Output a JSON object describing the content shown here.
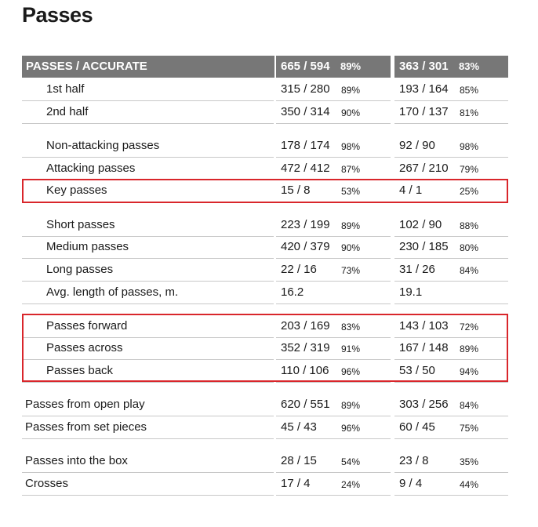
{
  "title": "Passes",
  "header": {
    "label": "PASSES / ACCURATE",
    "team_a": {
      "value": "665 / 594",
      "pct": "89%"
    },
    "team_b": {
      "value": "363 / 301",
      "pct": "83%"
    }
  },
  "rows": [
    {
      "label": "1st half",
      "a": "315 / 280",
      "ap": "89%",
      "b": "193 / 164",
      "bp": "85%"
    },
    {
      "label": "2nd half",
      "a": "350 / 314",
      "ap": "90%",
      "b": "170 / 137",
      "bp": "81%"
    },
    {
      "label": "Non-attacking passes",
      "a": "178 / 174",
      "ap": "98%",
      "b": "92 / 90",
      "bp": "98%"
    },
    {
      "label": "Attacking passes",
      "a": "472 / 412",
      "ap": "87%",
      "b": "267 / 210",
      "bp": "79%"
    },
    {
      "label": "Key passes",
      "a": "15 / 8",
      "ap": "53%",
      "b": "4 / 1",
      "bp": "25%"
    },
    {
      "label": "Short passes",
      "a": "223 / 199",
      "ap": "89%",
      "b": "102 / 90",
      "bp": "88%"
    },
    {
      "label": "Medium passes",
      "a": "420 / 379",
      "ap": "90%",
      "b": "230 / 185",
      "bp": "80%"
    },
    {
      "label": "Long passes",
      "a": "22 / 16",
      "ap": "73%",
      "b": "31 / 26",
      "bp": "84%"
    },
    {
      "label": "Avg. length of passes, m.",
      "a": "16.2",
      "ap": "",
      "b": "19.1",
      "bp": ""
    },
    {
      "label": "Passes forward",
      "a": "203 / 169",
      "ap": "83%",
      "b": "143 / 103",
      "bp": "72%"
    },
    {
      "label": "Passes across",
      "a": "352 / 319",
      "ap": "91%",
      "b": "167 / 148",
      "bp": "89%"
    },
    {
      "label": "Passes back",
      "a": "110 / 106",
      "ap": "96%",
      "b": "53 / 50",
      "bp": "94%"
    },
    {
      "label": "Passes from open play",
      "a": "620 / 551",
      "ap": "89%",
      "b": "303 / 256",
      "bp": "84%"
    },
    {
      "label": "Passes from set pieces",
      "a": "45 / 43",
      "ap": "96%",
      "b": "60 / 45",
      "bp": "75%"
    },
    {
      "label": "Passes into the box",
      "a": "28 / 15",
      "ap": "54%",
      "b": "23 / 8",
      "bp": "35%"
    },
    {
      "label": "Crosses",
      "a": "17 / 4",
      "ap": "24%",
      "b": "9 / 4",
      "bp": "44%"
    }
  ],
  "colors": {
    "header_bg": "#777777",
    "highlight": "#d9262b",
    "row_border": "#c8c8c8"
  }
}
